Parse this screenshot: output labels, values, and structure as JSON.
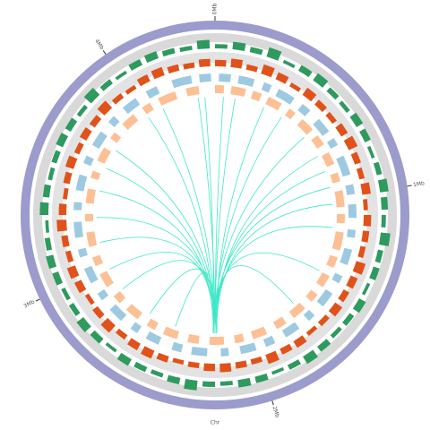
{
  "chart_data": {
    "type": "circos",
    "genome_length": 4.42,
    "axis_label": "Chr",
    "xticks": [
      {
        "value": 0,
        "label": "0Mb"
      },
      {
        "value": 1,
        "label": "1Mb"
      },
      {
        "value": 2,
        "label": "2Mb"
      },
      {
        "value": 3,
        "label": "3Mb"
      },
      {
        "value": 4,
        "label": "4Mb"
      }
    ],
    "tracks": [
      {
        "kind": "histogram",
        "color": "#2e9a5e",
        "values": [
          0.4,
          0.7,
          0.5,
          0.9,
          0.3,
          0.6,
          0.8,
          0.5,
          0.4,
          0.7,
          0.6,
          0.3,
          0.5,
          0.8,
          0.6,
          0.4,
          0.9,
          0.5,
          0.6,
          0.3,
          0.7,
          0.5,
          0.4,
          0.6,
          0.8,
          0.5,
          0.3,
          0.6,
          0.7,
          0.4,
          0.5,
          0.9,
          0.6,
          0.4,
          0.5,
          0.7,
          0.3,
          0.6,
          0.8,
          0.5,
          0.4,
          0.6,
          0.7,
          0.5,
          0.3,
          0.8,
          0.6,
          0.4,
          0.5,
          0.7,
          0.6,
          0.4,
          0.9,
          0.5,
          0.3,
          0.6,
          0.7,
          0.5,
          0.4,
          0.8
        ]
      },
      {
        "kind": "histogram",
        "color": "#e0521a",
        "values": [
          0.6,
          0.8,
          0.5,
          0.9,
          0.7,
          0.4,
          0.8,
          0.6,
          0.5,
          0.7,
          0.9,
          0.6,
          0.5,
          0.8,
          0.4,
          0.7,
          0.6,
          0.5,
          0.9,
          0.7,
          0.6,
          0.8,
          0.5,
          0.4,
          0.7,
          0.6,
          0.9,
          0.5,
          0.6,
          0.8,
          0.7,
          0.5,
          0.4,
          0.6,
          0.8,
          0.7,
          0.5,
          0.9,
          0.6,
          0.4,
          0.7,
          0.8,
          0.5,
          0.6,
          0.9,
          0.7,
          0.4,
          0.6,
          0.8,
          0.5,
          0.7,
          0.6,
          0.9,
          0.5,
          0.4,
          0.7,
          0.8,
          0.6,
          0.5,
          0.7
        ]
      },
      {
        "kind": "genes",
        "color": "#9ecae1",
        "intervals": [
          [
            0.02,
            0.08
          ],
          [
            0.12,
            0.2
          ],
          [
            0.25,
            0.29
          ],
          [
            0.33,
            0.42
          ],
          [
            0.47,
            0.52
          ],
          [
            0.58,
            0.66
          ],
          [
            0.7,
            0.74
          ],
          [
            0.8,
            0.9
          ],
          [
            0.95,
            1.0
          ],
          [
            1.05,
            1.12
          ],
          [
            1.18,
            1.22
          ],
          [
            1.28,
            1.36
          ],
          [
            1.42,
            1.46
          ],
          [
            1.52,
            1.6
          ],
          [
            1.66,
            1.7
          ],
          [
            1.76,
            1.84
          ],
          [
            1.9,
            1.95
          ],
          [
            2.0,
            2.08
          ],
          [
            2.14,
            2.18
          ],
          [
            2.25,
            2.33
          ],
          [
            2.38,
            2.43
          ],
          [
            2.5,
            2.57
          ],
          [
            2.62,
            2.66
          ],
          [
            2.72,
            2.8
          ],
          [
            2.86,
            2.9
          ],
          [
            2.96,
            3.04
          ],
          [
            3.1,
            3.14
          ],
          [
            3.2,
            3.28
          ],
          [
            3.34,
            3.38
          ],
          [
            3.44,
            3.52
          ],
          [
            3.58,
            3.62
          ],
          [
            3.68,
            3.76
          ],
          [
            3.82,
            3.86
          ],
          [
            3.92,
            4.0
          ],
          [
            4.06,
            4.12
          ],
          [
            4.2,
            4.3
          ],
          [
            4.34,
            4.4
          ]
        ]
      },
      {
        "kind": "genes",
        "color": "#fdbf94",
        "intervals": [
          [
            0.0,
            0.05
          ],
          [
            0.09,
            0.17
          ],
          [
            0.21,
            0.26
          ],
          [
            0.3,
            0.38
          ],
          [
            0.43,
            0.47
          ],
          [
            0.52,
            0.6
          ],
          [
            0.64,
            0.7
          ],
          [
            0.75,
            0.82
          ],
          [
            0.87,
            0.92
          ],
          [
            0.97,
            1.06
          ],
          [
            1.1,
            1.15
          ],
          [
            1.2,
            1.3
          ],
          [
            1.34,
            1.4
          ],
          [
            1.45,
            1.52
          ],
          [
            1.57,
            1.62
          ],
          [
            1.67,
            1.75
          ],
          [
            1.8,
            1.86
          ],
          [
            1.92,
            2.0
          ],
          [
            2.05,
            2.1
          ],
          [
            2.16,
            2.24
          ],
          [
            2.3,
            2.36
          ],
          [
            2.42,
            2.5
          ],
          [
            2.55,
            2.6
          ],
          [
            2.66,
            2.74
          ],
          [
            2.79,
            2.84
          ],
          [
            2.9,
            2.98
          ],
          [
            3.03,
            3.08
          ],
          [
            3.14,
            3.22
          ],
          [
            3.28,
            3.32
          ],
          [
            3.38,
            3.46
          ],
          [
            3.52,
            3.56
          ],
          [
            3.62,
            3.7
          ],
          [
            3.76,
            3.8
          ],
          [
            3.86,
            3.94
          ],
          [
            4.0,
            4.05
          ],
          [
            4.1,
            4.2
          ],
          [
            4.26,
            4.33
          ]
        ]
      }
    ],
    "links_color": "#3ee8c8",
    "links": [
      [
        2.21,
        0.05
      ],
      [
        2.21,
        0.12
      ],
      [
        2.21,
        4.32
      ],
      [
        2.22,
        4.36
      ],
      [
        2.2,
        0.3
      ],
      [
        2.21,
        0.42
      ],
      [
        2.22,
        0.6
      ],
      [
        2.2,
        0.74
      ],
      [
        2.21,
        0.84
      ],
      [
        2.22,
        0.94
      ],
      [
        2.2,
        1.04
      ],
      [
        2.21,
        1.18
      ],
      [
        2.22,
        1.45
      ],
      [
        2.21,
        1.7
      ],
      [
        2.2,
        3.72
      ],
      [
        2.21,
        3.6
      ],
      [
        2.22,
        3.46
      ],
      [
        2.2,
        3.3
      ],
      [
        2.21,
        3.15
      ],
      [
        2.22,
        2.98
      ],
      [
        2.2,
        2.84
      ],
      [
        2.21,
        4.1
      ],
      [
        2.22,
        4.0
      ],
      [
        2.21,
        2.45
      ],
      [
        2.2,
        2.62
      ]
    ]
  }
}
